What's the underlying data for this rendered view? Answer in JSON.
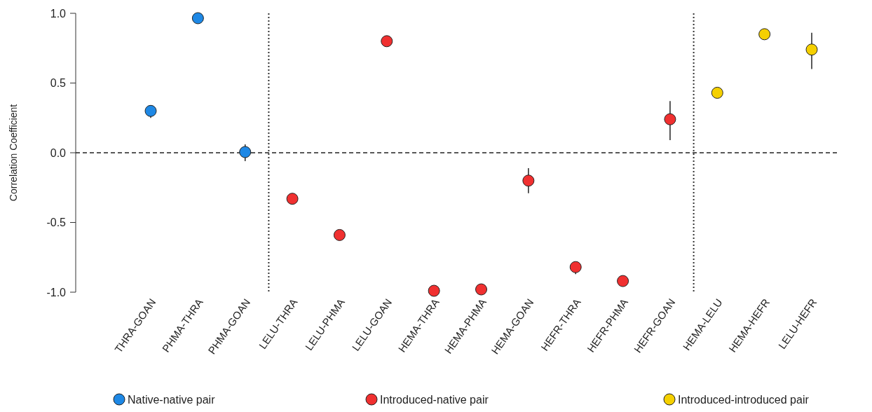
{
  "chart_data": {
    "type": "scatter",
    "ylabel": "Correlation Coefficient",
    "categories": [
      "THRA-GOAN",
      "PHMA-THRA",
      "PHMA-GOAN",
      "LELU-THRA",
      "LELU-PHMA",
      "LELU-GOAN",
      "HEMA-THRA",
      "HEMA-PHMA",
      "HEMA-GOAN",
      "HEFR-THRA",
      "HEFR-PHMA",
      "HEFR-GOAN",
      "HEMA-LELU",
      "HEMA-HEFR",
      "LELU-HEFR"
    ],
    "series": [
      {
        "name": "Native-native pair",
        "color": "#1e88e5",
        "x": [
          "THRA-GOAN",
          "PHMA-THRA",
          "PHMA-GOAN"
        ],
        "values": [
          0.3,
          0.965,
          0.005
        ],
        "errors": [
          [
            0.25,
            0.33
          ],
          null,
          [
            -0.06,
            0.06
          ]
        ]
      },
      {
        "name": "Introduced-native pair",
        "color": "#f03030",
        "x": [
          "LELU-THRA",
          "LELU-PHMA",
          "LELU-GOAN",
          "HEMA-THRA",
          "HEMA-PHMA",
          "HEMA-GOAN",
          "HEFR-THRA",
          "HEFR-PHMA",
          "HEFR-GOAN"
        ],
        "values": [
          -0.33,
          -0.59,
          0.8,
          -0.99,
          -0.98,
          -0.2,
          -0.82,
          -0.92,
          0.24
        ],
        "errors": [
          null,
          null,
          null,
          null,
          null,
          [
            -0.29,
            -0.11
          ],
          [
            -0.87,
            -0.79
          ],
          null,
          [
            0.09,
            0.37
          ]
        ]
      },
      {
        "name": "Introduced-introduced pair",
        "color": "#f5d000",
        "x": [
          "HEMA-LELU",
          "HEMA-HEFR",
          "LELU-HEFR"
        ],
        "values": [
          0.43,
          0.85,
          0.74
        ],
        "errors": [
          null,
          null,
          [
            0.6,
            0.86
          ]
        ]
      }
    ],
    "ylim": [
      -1.0,
      1.0
    ],
    "yticks": [
      {
        "value": -1.0,
        "label": "-1.0"
      },
      {
        "value": -0.5,
        "label": "-0.5"
      },
      {
        "value": 0,
        "label": "0.0"
      },
      {
        "value": 0.5,
        "label": "0.5"
      },
      {
        "value": 1.0,
        "label": "1.0"
      }
    ],
    "ref_lines": [
      {
        "axis": "y",
        "value": 0,
        "line_style": "dashed",
        "color": "#222222"
      }
    ],
    "marker": "circle",
    "grid": false,
    "legend": "bottom"
  }
}
